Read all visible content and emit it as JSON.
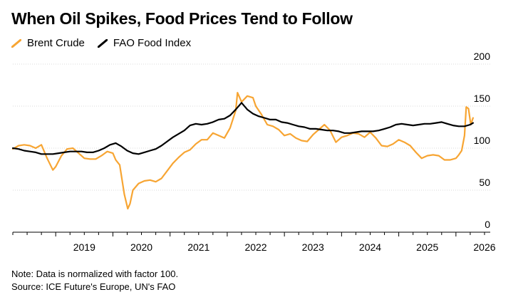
{
  "header": {
    "title": "When Oil Spikes, Food Prices Tend to Follow"
  },
  "footer": {
    "note": "Note: Data is normalized with factor 100.",
    "source": "Source: ICE Future's Europe, UN's FAO"
  },
  "chart_data": {
    "type": "line",
    "title": "When Oil Spikes, Food Prices Tend to Follow",
    "xlabel": "",
    "ylabel": "",
    "xlim": [
      2018.25,
      2026.6
    ],
    "ylim": [
      0,
      200
    ],
    "y_ticks": [
      "0",
      "50",
      "100",
      "150",
      "200"
    ],
    "x_ticks": [
      "2019",
      "2020",
      "2021",
      "2022",
      "2023",
      "2024",
      "2025",
      "2026"
    ],
    "grid": true,
    "legend": "top-left",
    "series": [
      {
        "name": "Brent Crude",
        "color": "#F7A533",
        "x": [
          2018.25,
          2018.35,
          2018.45,
          2018.55,
          2018.65,
          2018.75,
          2018.85,
          2018.95,
          2019.0,
          2019.1,
          2019.2,
          2019.3,
          2019.4,
          2019.5,
          2019.6,
          2019.7,
          2019.8,
          2019.9,
          2020.0,
          2020.05,
          2020.12,
          2020.2,
          2020.26,
          2020.3,
          2020.35,
          2020.45,
          2020.55,
          2020.65,
          2020.75,
          2020.85,
          2020.95,
          2021.05,
          2021.15,
          2021.25,
          2021.35,
          2021.45,
          2021.55,
          2021.65,
          2021.75,
          2021.85,
          2021.95,
          2022.05,
          2022.15,
          2022.18,
          2022.25,
          2022.35,
          2022.45,
          2022.5,
          2022.6,
          2022.7,
          2022.8,
          2022.9,
          2023.0,
          2023.1,
          2023.2,
          2023.3,
          2023.4,
          2023.5,
          2023.6,
          2023.7,
          2023.8,
          2023.9,
          2024.0,
          2024.1,
          2024.2,
          2024.3,
          2024.4,
          2024.5,
          2024.6,
          2024.7,
          2024.8,
          2024.9,
          2025.0,
          2025.1,
          2025.2,
          2025.3,
          2025.4,
          2025.5,
          2025.6,
          2025.7,
          2025.8,
          2025.9,
          2026.0,
          2026.05,
          2026.1,
          2026.15,
          2026.18,
          2026.22,
          2026.26,
          2026.3
        ],
        "y": [
          99,
          103,
          104,
          103,
          100,
          104,
          88,
          74,
          78,
          91,
          99,
          100,
          94,
          88,
          87,
          87,
          91,
          96,
          94,
          86,
          80,
          45,
          28,
          34,
          50,
          58,
          61,
          62,
          60,
          64,
          73,
          82,
          89,
          95,
          98,
          105,
          110,
          110,
          118,
          115,
          112,
          124,
          145,
          166,
          155,
          162,
          160,
          150,
          140,
          128,
          126,
          122,
          115,
          117,
          112,
          109,
          108,
          116,
          122,
          128,
          121,
          107,
          113,
          115,
          118,
          117,
          113,
          119,
          112,
          103,
          102,
          105,
          110,
          107,
          103,
          95,
          88,
          91,
          92,
          91,
          86,
          86,
          88,
          92,
          97,
          115,
          149,
          147,
          128,
          136
        ]
      },
      {
        "name": "FAO Food Index",
        "color": "#000000",
        "x": [
          2018.25,
          2018.35,
          2018.45,
          2018.55,
          2018.65,
          2018.75,
          2018.85,
          2018.95,
          2019.05,
          2019.15,
          2019.25,
          2019.35,
          2019.45,
          2019.55,
          2019.65,
          2019.75,
          2019.85,
          2019.95,
          2020.05,
          2020.15,
          2020.25,
          2020.35,
          2020.45,
          2020.55,
          2020.65,
          2020.75,
          2020.85,
          2020.95,
          2021.05,
          2021.15,
          2021.25,
          2021.35,
          2021.45,
          2021.55,
          2021.65,
          2021.75,
          2021.85,
          2021.95,
          2022.05,
          2022.15,
          2022.25,
          2022.35,
          2022.45,
          2022.55,
          2022.65,
          2022.75,
          2022.85,
          2022.95,
          2023.05,
          2023.15,
          2023.25,
          2023.35,
          2023.45,
          2023.55,
          2023.65,
          2023.75,
          2023.85,
          2023.95,
          2024.05,
          2024.15,
          2024.25,
          2024.35,
          2024.45,
          2024.55,
          2024.65,
          2024.75,
          2024.85,
          2024.95,
          2025.05,
          2025.15,
          2025.25,
          2025.35,
          2025.45,
          2025.55,
          2025.65,
          2025.75,
          2025.85,
          2025.95,
          2026.05,
          2026.15,
          2026.25,
          2026.3
        ],
        "y": [
          100,
          99,
          97,
          96,
          95,
          93,
          93,
          93,
          94,
          95,
          96,
          96,
          96,
          95,
          95,
          97,
          100,
          104,
          106,
          102,
          97,
          94,
          93,
          95,
          97,
          99,
          103,
          108,
          113,
          117,
          121,
          127,
          129,
          128,
          129,
          131,
          134,
          135,
          139,
          146,
          154,
          146,
          141,
          138,
          136,
          134,
          134,
          131,
          130,
          128,
          126,
          125,
          123,
          123,
          122,
          121,
          121,
          120,
          118,
          118,
          119,
          120,
          120,
          120,
          121,
          123,
          125,
          128,
          129,
          128,
          127,
          128,
          129,
          129,
          130,
          131,
          129,
          127,
          126,
          126,
          128,
          130
        ]
      }
    ]
  }
}
